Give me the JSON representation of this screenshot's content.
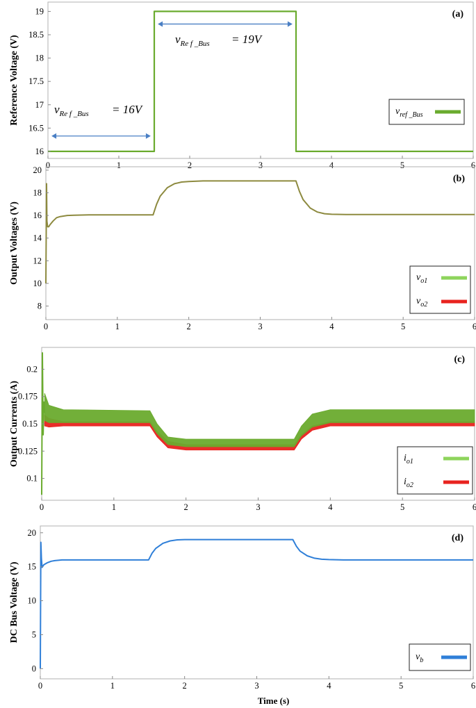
{
  "colors": {
    "green": "#6aab2e",
    "light_green": "#8ed45c",
    "red": "#e8231f",
    "blue": "#2f7fd8",
    "olive": "#8d8a3f",
    "arrow": "#4a7fc4"
  },
  "chart_data": [
    {
      "id": "a",
      "type": "line",
      "panel_label": "(a)",
      "ylabel": "Reference Voltage (V)",
      "xlabel": "",
      "xlim": [
        0,
        6
      ],
      "ylim": [
        15.85,
        19.2
      ],
      "xticks": [
        "0",
        "1",
        "2",
        "3",
        "4",
        "5",
        "6"
      ],
      "yticks": [
        "16",
        "16.5",
        "17",
        "17.5",
        "18",
        "18.5",
        "19"
      ],
      "grid": false,
      "legend": {
        "position": "right",
        "items": [
          {
            "main": "v",
            "sub": "ref _Bus",
            "color_key": "green"
          }
        ]
      },
      "annotations": [
        {
          "main": "v",
          "sub": "Re f _Bus",
          "value_text": "= 16V",
          "arrow_x": [
            0.05,
            1.45
          ],
          "arrow_y": 16.33
        },
        {
          "main": "v",
          "sub": "Re f _Bus",
          "value_text": "= 19V",
          "arrow_x": [
            1.55,
            3.45
          ],
          "arrow_y": 18.73
        }
      ],
      "series": [
        {
          "name": "v_ref_Bus",
          "color_key": "green",
          "width": 2.2,
          "x": [
            0,
            1.5,
            1.5,
            3.5,
            3.5,
            6
          ],
          "y": [
            16,
            16,
            19,
            19,
            16,
            16
          ]
        }
      ]
    },
    {
      "id": "b",
      "type": "line",
      "panel_label": "(b)",
      "ylabel": "Output Voltages (V)",
      "xlabel": "",
      "xlim": [
        0,
        6
      ],
      "ylim": [
        6.8,
        20.3
      ],
      "xticks": [
        "0",
        "1",
        "2",
        "3",
        "4",
        "5",
        "6"
      ],
      "yticks": [
        "8",
        "10",
        "12",
        "14",
        "16",
        "18",
        "20"
      ],
      "grid": false,
      "legend": {
        "position": "bottom-right",
        "items": [
          {
            "main": "v",
            "sub": "o1",
            "color_key": "light_green"
          },
          {
            "main": "v",
            "sub": "o2",
            "color_key": "red"
          }
        ]
      },
      "series": [
        {
          "name": "v_o1 / v_o2",
          "color_key": "olive",
          "width": 2,
          "x": [
            0,
            0.01,
            0.015,
            0.025,
            0.04,
            0.06,
            0.1,
            0.15,
            0.2,
            0.3,
            0.4,
            0.6,
            1.0,
            1.5,
            1.55,
            1.6,
            1.7,
            1.8,
            1.9,
            2.0,
            2.2,
            3.5,
            3.55,
            3.6,
            3.7,
            3.8,
            3.9,
            4.0,
            4.2,
            6.0
          ],
          "y": [
            10,
            18.8,
            15.5,
            15.0,
            15.0,
            15.2,
            15.5,
            15.8,
            15.9,
            16.0,
            16.02,
            16.05,
            16.05,
            16.05,
            17.0,
            17.7,
            18.45,
            18.8,
            18.95,
            19.0,
            19.05,
            19.05,
            18.1,
            17.4,
            16.65,
            16.3,
            16.15,
            16.1,
            16.08,
            16.08
          ]
        }
      ]
    },
    {
      "id": "c",
      "type": "area",
      "panel_label": "(c)",
      "ylabel": "Output Currents (A)",
      "xlabel": "",
      "xlim": [
        0,
        6
      ],
      "ylim": [
        0.08,
        0.22
      ],
      "xticks": [
        "0",
        "1",
        "2",
        "3",
        "4",
        "5",
        "6"
      ],
      "yticks": [
        "0.1",
        "0.125",
        "0.15",
        "0.175",
        "0.2"
      ],
      "grid": false,
      "legend": {
        "position": "bottom-right",
        "items": [
          {
            "main": "i",
            "sub": "o1",
            "color_key": "light_green"
          },
          {
            "main": "i",
            "sub": "o2",
            "color_key": "red"
          }
        ]
      },
      "series": [
        {
          "name": "i_o2 envelope",
          "color_key": "red",
          "x": [
            0.04,
            0.1,
            0.3,
            1.5,
            1.6,
            1.75,
            2.0,
            3.5,
            3.6,
            3.75,
            4.0,
            6.0
          ],
          "upper": [
            0.158,
            0.155,
            0.152,
            0.152,
            0.143,
            0.134,
            0.131,
            0.131,
            0.14,
            0.148,
            0.152,
            0.152
          ],
          "lower": [
            0.148,
            0.147,
            0.148,
            0.148,
            0.138,
            0.128,
            0.126,
            0.126,
            0.136,
            0.144,
            0.148,
            0.148
          ]
        },
        {
          "name": "i_o1 envelope",
          "color_key": "green",
          "x": [
            0.04,
            0.1,
            0.3,
            1.5,
            1.6,
            1.75,
            2.0,
            3.5,
            3.6,
            3.75,
            4.0,
            6.0
          ],
          "upper": [
            0.178,
            0.167,
            0.163,
            0.162,
            0.15,
            0.138,
            0.136,
            0.136,
            0.148,
            0.159,
            0.163,
            0.163
          ],
          "lower": [
            0.153,
            0.151,
            0.151,
            0.151,
            0.141,
            0.131,
            0.129,
            0.129,
            0.139,
            0.147,
            0.151,
            0.151
          ]
        },
        {
          "name": "startup spike",
          "color_key": "green",
          "width": 2,
          "x": [
            0,
            0.01,
            0.02,
            0.03,
            0.04
          ],
          "y": [
            0.085,
            0.215,
            0.14,
            0.17,
            0.16
          ]
        }
      ]
    },
    {
      "id": "d",
      "type": "line",
      "panel_label": "(d)",
      "ylabel": "DC Bus Voltage (V)",
      "xlabel": "Time (s)",
      "xlim": [
        0,
        6
      ],
      "ylim": [
        -1.5,
        21
      ],
      "xticks": [
        "0",
        "1",
        "2",
        "3",
        "4",
        "5",
        "6"
      ],
      "yticks": [
        "0",
        "5",
        "10",
        "15",
        "20"
      ],
      "grid": false,
      "legend": {
        "position": "bottom-right",
        "items": [
          {
            "main": "v",
            "sub": "b",
            "color_key": "blue"
          }
        ]
      },
      "series": [
        {
          "name": "v_b",
          "color_key": "blue",
          "width": 2,
          "x": [
            0,
            0.008,
            0.015,
            0.025,
            0.05,
            0.1,
            0.15,
            0.2,
            0.3,
            0.5,
            1.0,
            1.5,
            1.55,
            1.6,
            1.7,
            1.8,
            1.9,
            2.0,
            2.2,
            3.5,
            3.55,
            3.6,
            3.7,
            3.8,
            3.9,
            4.0,
            4.2,
            6.0
          ],
          "y": [
            0,
            18.6,
            16.2,
            14.9,
            15.3,
            15.6,
            15.8,
            15.9,
            16.0,
            16.0,
            16.0,
            16.0,
            17.0,
            17.7,
            18.45,
            18.8,
            18.95,
            19.0,
            19.0,
            19.0,
            18.0,
            17.3,
            16.6,
            16.25,
            16.1,
            16.05,
            16.0,
            16.0
          ]
        }
      ]
    }
  ]
}
